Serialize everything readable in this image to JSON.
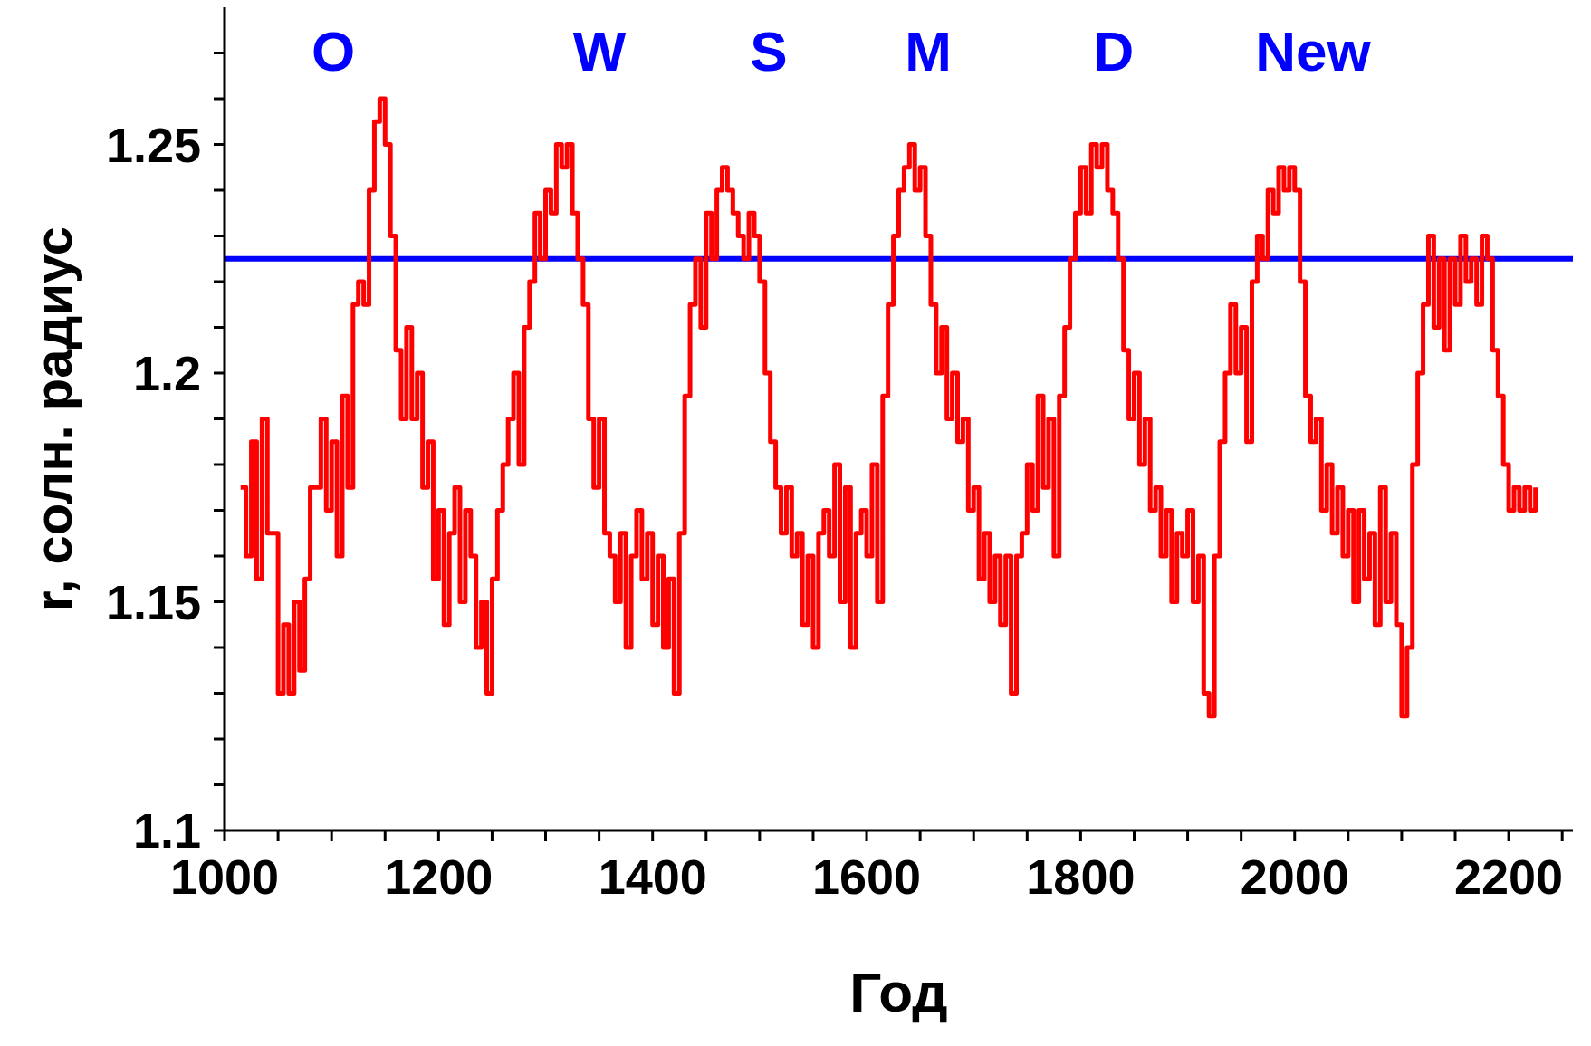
{
  "chart_data": {
    "type": "step",
    "xlabel": "Год",
    "ylabel": "r, солн. радиус",
    "xlim": [
      1000,
      2260
    ],
    "ylim": [
      1.1,
      1.28
    ],
    "xticks": [
      1000,
      {
        "value": 1050,
        "label": null
      },
      1200,
      {
        "value": 1100,
        "label": null
      },
      {
        "value": 1150,
        "label": null
      },
      {
        "value": 1250,
        "label": null
      },
      1400,
      {
        "value": 1300,
        "label": null
      },
      {
        "value": 1350,
        "label": null
      },
      {
        "value": 1450,
        "label": null
      },
      1600,
      {
        "value": 1500,
        "label": null
      },
      {
        "value": 1550,
        "label": null
      },
      {
        "value": 1650,
        "label": null
      },
      1800,
      {
        "value": 1700,
        "label": null
      },
      {
        "value": 1750,
        "label": null
      },
      {
        "value": 1850,
        "label": null
      },
      2000,
      {
        "value": 1900,
        "label": null
      },
      {
        "value": 1950,
        "label": null
      },
      {
        "value": 2050,
        "label": null
      },
      2200,
      {
        "value": 2100,
        "label": null
      },
      {
        "value": 2150,
        "label": null
      },
      {
        "value": 2250,
        "label": null
      }
    ],
    "yticks": [
      1.1,
      {
        "value": 1.11,
        "label": null
      },
      {
        "value": 1.12,
        "label": null
      },
      {
        "value": 1.13,
        "label": null
      },
      {
        "value": 1.14,
        "label": null
      },
      1.15,
      {
        "value": 1.16,
        "label": null
      },
      {
        "value": 1.17,
        "label": null
      },
      {
        "value": 1.18,
        "label": null
      },
      {
        "value": 1.19,
        "label": null
      },
      1.2,
      {
        "value": 1.21,
        "label": null
      },
      {
        "value": 1.22,
        "label": null
      },
      {
        "value": 1.23,
        "label": null
      },
      {
        "value": 1.24,
        "label": null
      },
      1.25,
      {
        "value": 1.26,
        "label": null
      },
      {
        "value": 1.27,
        "label": null
      }
    ],
    "grid": false,
    "marker": "none",
    "line_style": "solid",
    "ref_lines": [
      {
        "axis": "y",
        "value": 1.225,
        "color": "#0000ff"
      }
    ],
    "annotations": [
      "O",
      "W",
      "S",
      "M",
      "D",
      "New"
    ],
    "series": [
      {
        "color": "#ff0000",
        "x": [
          1015,
          1020,
          1025,
          1030,
          1035,
          1040,
          1045,
          1050,
          1055,
          1060,
          1065,
          1070,
          1075,
          1080,
          1085,
          1090,
          1095,
          1100,
          1105,
          1110,
          1115,
          1120,
          1125,
          1130,
          1135,
          1140,
          1145,
          1150,
          1155,
          1160,
          1165,
          1170,
          1175,
          1180,
          1185,
          1190,
          1195,
          1200,
          1205,
          1210,
          1215,
          1220,
          1225,
          1230,
          1235,
          1240,
          1245,
          1250,
          1255,
          1260,
          1265,
          1270,
          1275,
          1280,
          1285,
          1290,
          1295,
          1300,
          1305,
          1310,
          1315,
          1320,
          1325,
          1330,
          1335,
          1340,
          1345,
          1350,
          1355,
          1360,
          1365,
          1370,
          1375,
          1380,
          1385,
          1390,
          1395,
          1400,
          1405,
          1410,
          1415,
          1420,
          1425,
          1430,
          1435,
          1440,
          1445,
          1450,
          1455,
          1460,
          1465,
          1470,
          1475,
          1480,
          1485,
          1490,
          1495,
          1500,
          1505,
          1510,
          1515,
          1520,
          1525,
          1530,
          1535,
          1540,
          1545,
          1550,
          1555,
          1560,
          1565,
          1570,
          1575,
          1580,
          1585,
          1590,
          1595,
          1600,
          1605,
          1610,
          1615,
          1620,
          1625,
          1630,
          1635,
          1640,
          1645,
          1650,
          1655,
          1660,
          1665,
          1670,
          1675,
          1680,
          1685,
          1690,
          1695,
          1700,
          1705,
          1710,
          1715,
          1720,
          1725,
          1730,
          1735,
          1740,
          1745,
          1750,
          1755,
          1760,
          1765,
          1770,
          1775,
          1780,
          1785,
          1790,
          1795,
          1800,
          1805,
          1810,
          1815,
          1820,
          1825,
          1830,
          1835,
          1840,
          1845,
          1850,
          1855,
          1860,
          1865,
          1870,
          1875,
          1880,
          1885,
          1890,
          1895,
          1900,
          1905,
          1910,
          1915,
          1920,
          1925,
          1930,
          1935,
          1940,
          1945,
          1950,
          1955,
          1960,
          1965,
          1970,
          1975,
          1980,
          1985,
          1990,
          1995,
          2000,
          2005,
          2010,
          2015,
          2020,
          2025,
          2030,
          2035,
          2040,
          2045,
          2050,
          2055,
          2060,
          2065,
          2070,
          2075,
          2080,
          2085,
          2090,
          2095,
          2100,
          2105,
          2110,
          2115,
          2120,
          2125,
          2130,
          2135,
          2140,
          2145,
          2150,
          2155,
          2160,
          2165,
          2170,
          2175,
          2180,
          2185,
          2190,
          2195,
          2200,
          2205,
          2210,
          2215,
          2220,
          2225
        ],
        "values": [
          1.175,
          1.16,
          1.185,
          1.155,
          1.19,
          1.165,
          1.165,
          1.13,
          1.145,
          1.13,
          1.15,
          1.135,
          1.155,
          1.175,
          1.175,
          1.19,
          1.17,
          1.185,
          1.16,
          1.195,
          1.175,
          1.215,
          1.22,
          1.215,
          1.24,
          1.255,
          1.26,
          1.25,
          1.23,
          1.205,
          1.19,
          1.21,
          1.19,
          1.2,
          1.175,
          1.185,
          1.155,
          1.17,
          1.145,
          1.165,
          1.175,
          1.15,
          1.17,
          1.16,
          1.14,
          1.15,
          1.13,
          1.155,
          1.17,
          1.18,
          1.19,
          1.2,
          1.18,
          1.21,
          1.22,
          1.235,
          1.225,
          1.24,
          1.235,
          1.25,
          1.245,
          1.25,
          1.235,
          1.225,
          1.215,
          1.19,
          1.175,
          1.19,
          1.165,
          1.16,
          1.15,
          1.165,
          1.14,
          1.16,
          1.17,
          1.155,
          1.165,
          1.145,
          1.16,
          1.14,
          1.155,
          1.13,
          1.165,
          1.195,
          1.215,
          1.225,
          1.21,
          1.235,
          1.225,
          1.24,
          1.245,
          1.24,
          1.235,
          1.23,
          1.225,
          1.235,
          1.23,
          1.22,
          1.2,
          1.185,
          1.175,
          1.165,
          1.175,
          1.16,
          1.165,
          1.145,
          1.16,
          1.14,
          1.165,
          1.17,
          1.16,
          1.18,
          1.15,
          1.175,
          1.14,
          1.165,
          1.17,
          1.16,
          1.18,
          1.15,
          1.195,
          1.215,
          1.23,
          1.24,
          1.245,
          1.25,
          1.24,
          1.245,
          1.23,
          1.215,
          1.2,
          1.21,
          1.19,
          1.2,
          1.185,
          1.19,
          1.17,
          1.175,
          1.155,
          1.165,
          1.15,
          1.16,
          1.145,
          1.16,
          1.13,
          1.16,
          1.165,
          1.18,
          1.17,
          1.195,
          1.175,
          1.19,
          1.16,
          1.195,
          1.21,
          1.225,
          1.235,
          1.245,
          1.235,
          1.25,
          1.245,
          1.25,
          1.24,
          1.235,
          1.225,
          1.205,
          1.19,
          1.2,
          1.18,
          1.19,
          1.17,
          1.175,
          1.16,
          1.17,
          1.15,
          1.165,
          1.16,
          1.17,
          1.15,
          1.16,
          1.13,
          1.125,
          1.16,
          1.185,
          1.2,
          1.215,
          1.2,
          1.21,
          1.185,
          1.22,
          1.23,
          1.225,
          1.24,
          1.235,
          1.245,
          1.24,
          1.245,
          1.24,
          1.22,
          1.195,
          1.185,
          1.19,
          1.17,
          1.18,
          1.165,
          1.175,
          1.16,
          1.17,
          1.15,
          1.17,
          1.155,
          1.165,
          1.145,
          1.175,
          1.15,
          1.165,
          1.145,
          1.125,
          1.14,
          1.18,
          1.2,
          1.215,
          1.23,
          1.21,
          1.225,
          1.205,
          1.225,
          1.215,
          1.23,
          1.22,
          1.225,
          1.215,
          1.23,
          1.225,
          1.205,
          1.195,
          1.18,
          1.17,
          1.175,
          1.17,
          1.175,
          1.17,
          1.175
        ]
      }
    ]
  }
}
